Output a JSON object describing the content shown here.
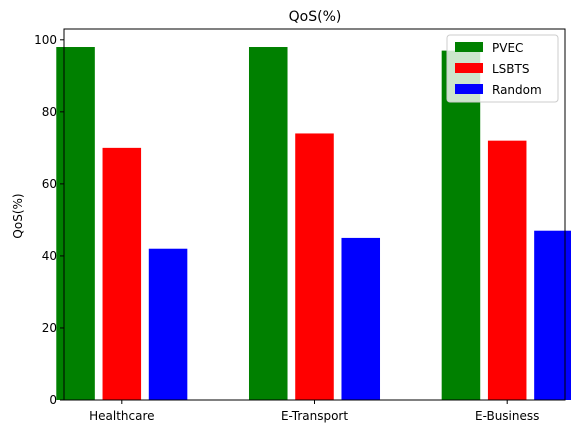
{
  "chart_data": {
    "type": "bar",
    "title": "QoS(%)",
    "xlabel": "",
    "ylabel": "QoS(%)",
    "ylim": [
      0,
      103
    ],
    "yticks": [
      0,
      20,
      40,
      60,
      80,
      100
    ],
    "categories": [
      "Healthcare",
      "E-Transport",
      "E-Business"
    ],
    "series": [
      {
        "name": "PVEC",
        "color": "#008000",
        "values": [
          98,
          98,
          97
        ]
      },
      {
        "name": "LSBTS",
        "color": "#ff0000",
        "values": [
          70,
          74,
          72
        ]
      },
      {
        "name": "Random",
        "color": "#0000ff",
        "values": [
          42,
          45,
          47
        ]
      }
    ],
    "legend_position": "top-right",
    "grid": false
  }
}
